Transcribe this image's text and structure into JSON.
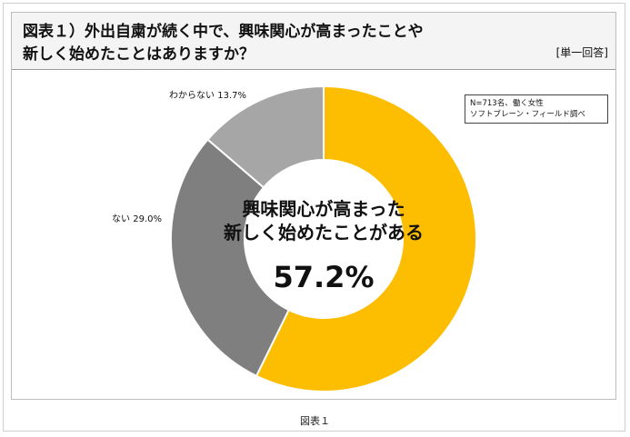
{
  "chart_data": {
    "type": "pie",
    "variant": "donut",
    "title_lines": [
      "図表１）外出自粛が続く中で、興味関心が高まったことや",
      "新しく始めたことはありますか？"
    ],
    "answer_type": "[単一回答]",
    "slices": [
      {
        "label": "興味関心が高まった・新しく始めたことがある",
        "value": 57.2,
        "color": "#fdbd00",
        "label_text": ""
      },
      {
        "label": "ない",
        "value": 29.0,
        "color": "#7f7f7f",
        "label_text": "ない 29.0%"
      },
      {
        "label": "わからない",
        "value": 13.7,
        "color": "#a6a6a6",
        "label_text": "わからない 13.7%"
      }
    ],
    "center_text": {
      "line1": "興味関心が高まった",
      "line2": "新しく始めたことがある",
      "value": "57.2%"
    },
    "source_note": [
      "N=713名、働く女性",
      "ソフトブレーン・フィールド調べ"
    ]
  },
  "caption": "図表１"
}
